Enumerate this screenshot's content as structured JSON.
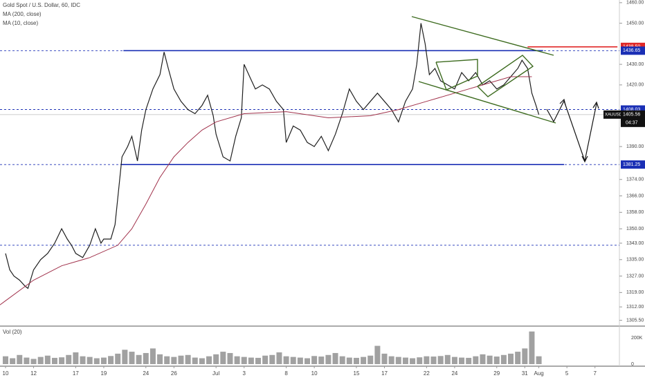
{
  "chart_data": {
    "type": "line",
    "title": "Gold Spot / U.S. Dollar, 60, IDC",
    "indicator_labels": [
      "MA (200, close)",
      "MA (10, close)"
    ],
    "xlim": [
      -0.394,
      43.74
    ],
    "ylim": [
      1304,
      1461.3
    ],
    "xticks": [
      {
        "value": 0,
        "label": "10"
      },
      {
        "value": 2,
        "label": "12"
      },
      {
        "value": 5,
        "label": "17"
      },
      {
        "value": 7,
        "label": "19"
      },
      {
        "value": 10,
        "label": "24"
      },
      {
        "value": 12,
        "label": "26"
      },
      {
        "value": 15,
        "label": "Jul"
      },
      {
        "value": 17,
        "label": "3"
      },
      {
        "value": 20,
        "label": "8"
      },
      {
        "value": 22,
        "label": "10"
      },
      {
        "value": 25,
        "label": "15"
      },
      {
        "value": 27,
        "label": "17"
      },
      {
        "value": 30,
        "label": "22"
      },
      {
        "value": 32,
        "label": "24"
      },
      {
        "value": 35,
        "label": "29"
      },
      {
        "value": 37,
        "label": "31"
      },
      {
        "value": 38,
        "label": "Aug"
      },
      {
        "value": 40,
        "label": "5"
      },
      {
        "value": 42,
        "label": "7"
      }
    ],
    "yticks": [
      {
        "value": 1460,
        "label": "1460.00"
      },
      {
        "value": 1450,
        "label": "1450.00"
      },
      {
        "value": 1430,
        "label": "1430.00"
      },
      {
        "value": 1420,
        "label": "1420.00"
      },
      {
        "value": 1390,
        "label": "1390.00"
      },
      {
        "value": 1374,
        "label": "1374.00"
      },
      {
        "value": 1366,
        "label": "1366.00"
      },
      {
        "value": 1358,
        "label": "1358.00"
      },
      {
        "value": 1350,
        "label": "1350.00"
      },
      {
        "value": 1343,
        "label": "1343.00"
      },
      {
        "value": 1335,
        "label": "1335.00"
      },
      {
        "value": 1327,
        "label": "1327.00"
      },
      {
        "value": 1319,
        "label": "1319.00"
      },
      {
        "value": 1312,
        "label": "1312.00"
      },
      {
        "value": 1305.5,
        "label": "1305.50"
      }
    ],
    "series": [
      {
        "name": "XAUUSD",
        "color": "#1e1e1e",
        "x": [
          0,
          0.3,
          0.6,
          1,
          1.4,
          1.6,
          2,
          2.5,
          3,
          3.5,
          4,
          4.4,
          4.7,
          5,
          5.5,
          6,
          6.4,
          6.8,
          7,
          7.5,
          7.8,
          8,
          8.3,
          8.7,
          9,
          9.4,
          9.7,
          10,
          10.5,
          11,
          11.3,
          11.6,
          12,
          12.5,
          13,
          13.5,
          14,
          14.4,
          14.8,
          15,
          15.5,
          16,
          16.4,
          16.8,
          17,
          17.4,
          17.8,
          18.3,
          18.8,
          19.3,
          19.8,
          20,
          20.5,
          21,
          21.5,
          22,
          22.5,
          23,
          23.5,
          24,
          24.5,
          25,
          25.5,
          26,
          26.5,
          27,
          27.5,
          28,
          28.5,
          29,
          29.3,
          29.6,
          29.9,
          30.2,
          30.6,
          31,
          31.5,
          32,
          32.5,
          33,
          33.5,
          34,
          34.5,
          35,
          35.5,
          36,
          36.5,
          36.8,
          37.2,
          37.5,
          37.8,
          38
        ],
        "values": [
          1338,
          1330,
          1327,
          1325,
          1322,
          1321,
          1330,
          1335,
          1338,
          1343,
          1350,
          1345,
          1342,
          1338,
          1336,
          1342,
          1350,
          1343,
          1345,
          1345,
          1352,
          1365,
          1385,
          1390,
          1395,
          1383,
          1398,
          1408,
          1418,
          1425,
          1436,
          1428,
          1418,
          1412,
          1408,
          1406,
          1410,
          1415,
          1405,
          1396,
          1385,
          1383,
          1395,
          1404,
          1430,
          1424,
          1418,
          1420,
          1418,
          1412,
          1408,
          1392,
          1400,
          1398,
          1392,
          1390,
          1395,
          1388,
          1396,
          1406,
          1418,
          1412,
          1408,
          1412,
          1416,
          1412,
          1408,
          1402,
          1412,
          1418,
          1430,
          1450,
          1440,
          1425,
          1428,
          1422,
          1420,
          1418,
          1426,
          1422,
          1426,
          1420,
          1422,
          1418,
          1420,
          1424,
          1428,
          1432,
          1428,
          1416,
          1410,
          1405.56
        ]
      },
      {
        "name": "MA (200, close)",
        "color": "#a0304a",
        "x": [
          -0.394,
          0,
          2,
          4,
          6,
          8,
          9,
          10,
          11,
          12,
          13,
          14,
          15,
          17,
          20,
          23,
          26,
          28,
          30,
          33,
          36,
          37.5
        ],
        "values": [
          1313,
          1315,
          1325,
          1332,
          1336,
          1342,
          1350,
          1362,
          1375,
          1385,
          1392,
          1398,
          1402,
          1406,
          1407,
          1404,
          1405,
          1408,
          1412,
          1418,
          1424,
          1424
        ]
      }
    ],
    "levels": [
      1342
    ],
    "horizontal_lines": [
      {
        "value": 1436.65,
        "x": [
          8.4,
          38.3
        ],
        "color": "#1a2fb5"
      },
      {
        "value": 1381.25,
        "x": [
          8.2,
          39.8
        ],
        "color": "#1a2fb5"
      },
      {
        "value": 1438.5,
        "x": [
          37.2,
          43.6
        ],
        "color": "#e02828"
      }
    ],
    "price_labels": [
      {
        "value": 1438.5,
        "label": "1438.50",
        "color": "#e02828"
      },
      {
        "value": 1436.65,
        "label": "1436.65",
        "color": "#1a2fb5"
      },
      {
        "value": 1408.03,
        "label": "1408.03",
        "color": "#1a2fb5"
      },
      {
        "value": 1381.25,
        "label": "1381.25",
        "color": "#1a2fb5"
      }
    ],
    "last_price": {
      "name": "XAUUSD",
      "value": 1405.56,
      "label": "1405.56",
      "countdown": "04:37"
    },
    "volume": {
      "title": "Vol (20)",
      "color": "#8a8a8a",
      "ylim": [
        0,
        270
      ],
      "yticks": [
        {
          "value": 200,
          "label": "200K"
        },
        0
      ],
      "x": [
        0,
        0.5,
        1,
        1.5,
        2,
        2.5,
        3,
        3.5,
        4,
        4.5,
        5,
        5.5,
        6,
        6.5,
        7,
        7.5,
        8,
        8.5,
        9,
        9.5,
        10,
        10.5,
        11,
        11.5,
        12,
        12.5,
        13,
        13.5,
        14,
        14.5,
        15,
        15.5,
        16,
        16.5,
        17,
        17.5,
        18,
        18.5,
        19,
        19.5,
        20,
        20.5,
        21,
        21.5,
        22,
        22.5,
        23,
        23.5,
        24,
        24.5,
        25,
        25.5,
        26,
        26.5,
        27,
        27.5,
        28,
        28.5,
        29,
        29.5,
        30,
        30.5,
        31,
        31.5,
        32,
        32.5,
        33,
        33.5,
        34,
        34.5,
        35,
        35.5,
        36,
        36.5,
        37,
        37.5,
        38
      ],
      "values": [
        60,
        45,
        70,
        50,
        40,
        55,
        65,
        48,
        52,
        70,
        90,
        60,
        55,
        45,
        50,
        62,
        80,
        110,
        95,
        70,
        85,
        120,
        75,
        60,
        55,
        65,
        70,
        50,
        45,
        60,
        75,
        95,
        85,
        60,
        55,
        50,
        48,
        65,
        70,
        90,
        60,
        55,
        50,
        45,
        62,
        58,
        70,
        85,
        60,
        50,
        48,
        55,
        65,
        140,
        80,
        60,
        55,
        50,
        45,
        52,
        60,
        58,
        62,
        70,
        55,
        50,
        48,
        60,
        75,
        65,
        58,
        70,
        80,
        95,
        120,
        250,
        60
      ]
    }
  }
}
